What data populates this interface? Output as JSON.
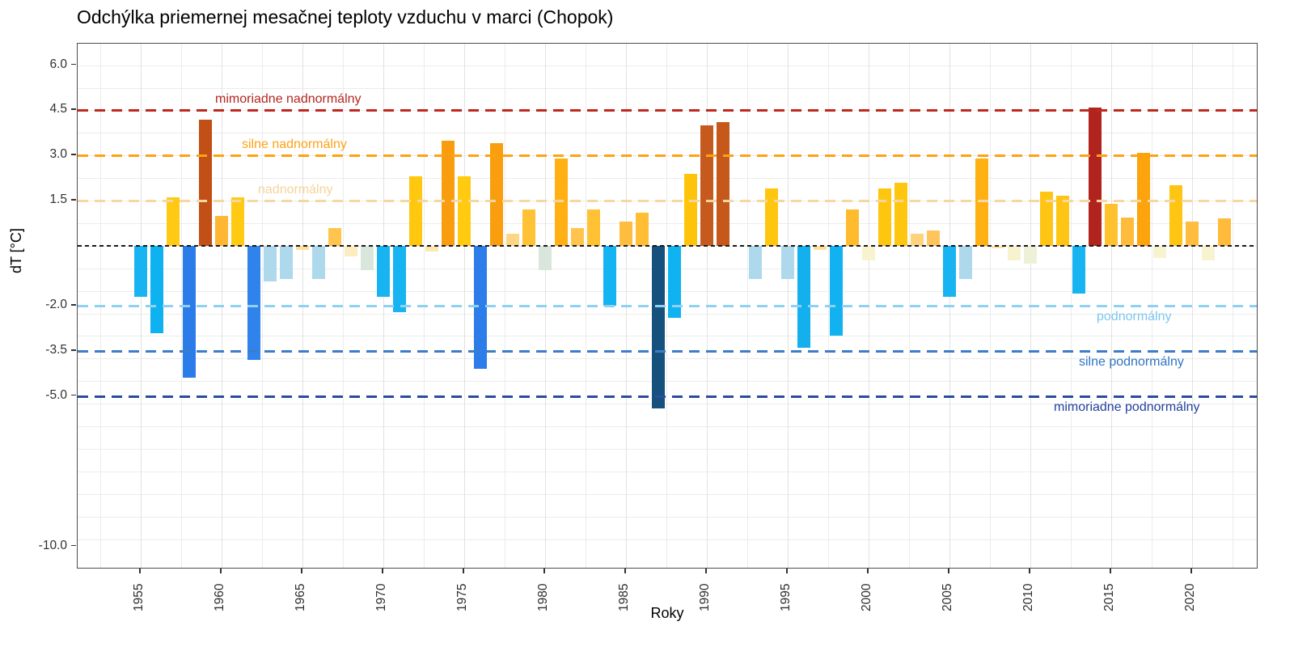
{
  "title": "Odchýlka priemernej mesačnej teploty vzduchu v marci (Chopok)",
  "axes": {
    "y_label": "dT [°C]",
    "x_label": "Roky",
    "y_ticks": [
      "6.0",
      "4.5",
      "3.0",
      "1.5",
      "-2.0",
      "-3.5",
      "-5.0",
      "-10.0"
    ],
    "y_tick_values": [
      6.0,
      4.5,
      3.0,
      1.5,
      -2.0,
      -3.5,
      -5.0,
      -10.0
    ],
    "x_ticks": [
      1955,
      1960,
      1965,
      1970,
      1975,
      1980,
      1985,
      1990,
      1995,
      2000,
      2005,
      2010,
      2015,
      2020
    ]
  },
  "thresholds": [
    {
      "value": 4.5,
      "label": "mimoriadne nadnormálny",
      "line_color": "#c0271e",
      "label_color": "#b2271f",
      "side": "above"
    },
    {
      "value": 3.0,
      "label": "silne nadnormálny",
      "line_color": "#ffa113",
      "label_color": "#ffa113",
      "side": "above"
    },
    {
      "value": 1.5,
      "label": "nadnormálny",
      "line_color": "#f7d7a1",
      "label_color": "#f5d49c",
      "side": "above"
    },
    {
      "value": 0.0,
      "label": "",
      "line_color": "#1a1a1a",
      "label_color": "#1a1a1a",
      "side": "zero"
    },
    {
      "value": -2.0,
      "label": "podnormálny",
      "line_color": "#90d1f3",
      "label_color": "#7ec6ef",
      "side": "below"
    },
    {
      "value": -3.5,
      "label": "silne podnormálny",
      "line_color": "#3c7ec5",
      "label_color": "#2f74c4",
      "side": "below"
    },
    {
      "value": -5.0,
      "label": "mimoriadne podnormálny",
      "line_color": "#2b4ba0",
      "label_color": "#24419e",
      "side": "below"
    }
  ],
  "chart_data": {
    "type": "bar",
    "title": "Odchýlka priemernej mesačnej teploty vzduchu v marci (Chopok)",
    "xlabel": "Roky",
    "ylabel": "dT [°C]",
    "ylim": [
      -10.8,
      6.7
    ],
    "x_range": [
      1955,
      2022
    ],
    "grid": "on",
    "legend_position": "none",
    "x": [
      1955,
      1956,
      1957,
      1958,
      1959,
      1960,
      1961,
      1962,
      1963,
      1964,
      1965,
      1966,
      1967,
      1968,
      1969,
      1970,
      1971,
      1972,
      1973,
      1974,
      1975,
      1976,
      1977,
      1978,
      1979,
      1980,
      1981,
      1982,
      1983,
      1984,
      1985,
      1986,
      1987,
      1988,
      1989,
      1990,
      1991,
      1992,
      1993,
      1994,
      1995,
      1996,
      1997,
      1998,
      1999,
      2000,
      2001,
      2002,
      2003,
      2004,
      2005,
      2006,
      2007,
      2008,
      2009,
      2010,
      2011,
      2012,
      2013,
      2014,
      2015,
      2016,
      2017,
      2018,
      2019,
      2020,
      2021,
      2022
    ],
    "values": [
      -1.7,
      -2.9,
      1.6,
      -4.4,
      4.2,
      1.0,
      1.6,
      -3.8,
      -1.2,
      -1.1,
      -0.15,
      -1.1,
      0.6,
      -0.35,
      -0.8,
      -1.7,
      -2.2,
      2.3,
      -0.2,
      3.5,
      2.3,
      -4.1,
      3.4,
      0.4,
      1.2,
      -0.8,
      2.9,
      0.6,
      1.2,
      -2.0,
      0.8,
      1.1,
      -5.4,
      -2.4,
      2.4,
      4.0,
      4.1,
      0.0,
      -1.1,
      1.9,
      -1.1,
      -3.4,
      -0.15,
      -3.0,
      1.2,
      -0.5,
      1.9,
      2.1,
      0.4,
      0.5,
      -1.7,
      -1.1,
      2.9,
      -0.1,
      -0.5,
      -0.6,
      1.8,
      1.65,
      -1.6,
      4.6,
      1.4,
      0.95,
      3.1,
      -0.4,
      2.0,
      0.8,
      -0.5,
      0.9
    ],
    "bar_colors": [
      "#18b4f2",
      "#0fb2f0",
      "#ffc914",
      "#2b7ce9",
      "#c24f16",
      "#ffb733",
      "#ffc914",
      "#2f83ea",
      "#aed9ec",
      "#aed9ec",
      "#ffdf9e",
      "#aed9ec",
      "#ffc44e",
      "#fcedbe",
      "#d9e6db",
      "#18b4f2",
      "#18b4f2",
      "#ffc70e",
      "#fbe7b0",
      "#f99c0d",
      "#ffca10",
      "#2c7ce9",
      "#f99e0e",
      "#ffd685",
      "#ffc235",
      "#d9e6db",
      "#ffb012",
      "#ffc44e",
      "#ffc235",
      "#14b3f1",
      "#ffbd40",
      "#ffbe33",
      "#16517e",
      "#10b3f2",
      "#ffc40a",
      "#c65a1e",
      "#c6581c",
      "#ffffff",
      "#aed9ec",
      "#ffc60f",
      "#aed9ec",
      "#14b0ee",
      "#ffdf9e",
      "#12b1f0",
      "#ffbb2e",
      "#f8f3cf",
      "#ffc60f",
      "#ffc60f",
      "#ffd27e",
      "#ffc45c",
      "#18b4f2",
      "#aed9ec",
      "#ffb012",
      "#ffe2a4",
      "#f8f3cf",
      "#eef1d8",
      "#ffc514",
      "#ffc514",
      "#18b4f2",
      "#b1241d",
      "#ffc22e",
      "#ffbc3c",
      "#fca30d",
      "#f8f3cf",
      "#ffc514",
      "#ffbd40",
      "#f8f3cf",
      "#ffbc3c"
    ]
  }
}
